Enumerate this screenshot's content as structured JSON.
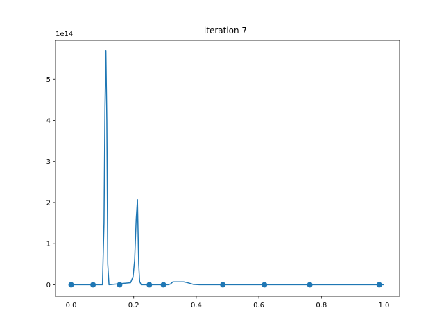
{
  "chart_data": {
    "type": "line",
    "title": "iteration 7",
    "xlabel": "",
    "ylabel": "",
    "y_offset_label": "1e14",
    "xlim": [
      -0.05,
      1.05
    ],
    "ylim": [
      -0.28,
      5.95
    ],
    "x_ticks": [
      0.0,
      0.2,
      0.4,
      0.6,
      0.8,
      1.0
    ],
    "x_tick_labels": [
      "0.0",
      "0.2",
      "0.4",
      "0.6",
      "0.8",
      "1.0"
    ],
    "y_ticks": [
      0,
      1,
      2,
      3,
      4,
      5
    ],
    "y_tick_labels": [
      "0",
      "1",
      "2",
      "3",
      "4",
      "5"
    ],
    "grid": false,
    "colors": {
      "line": "#1f77b4",
      "points": "#1f77b4"
    },
    "series": [
      {
        "kind": "line",
        "x": [
          0.0,
          0.1,
          0.105,
          0.108,
          0.111,
          0.114,
          0.117,
          0.121,
          0.19,
          0.198,
          0.203,
          0.208,
          0.212,
          0.216,
          0.219,
          0.224,
          0.23,
          0.31,
          0.318,
          0.325,
          0.36,
          0.372,
          0.39,
          0.41,
          1.0
        ],
        "y": [
          0.0,
          0.0,
          1.5,
          4.3,
          5.7,
          4.0,
          0.5,
          0.0,
          0.05,
          0.2,
          0.6,
          1.6,
          2.07,
          0.5,
          0.08,
          0.0,
          0.0,
          0.0,
          0.02,
          0.07,
          0.07,
          0.05,
          0.01,
          0.0,
          0.0
        ]
      },
      {
        "kind": "points",
        "x": [
          0.0,
          0.07,
          0.155,
          0.25,
          0.295,
          0.485,
          0.618,
          0.763,
          0.985
        ],
        "y": [
          0,
          0,
          0,
          0,
          0,
          0,
          0,
          0,
          0
        ]
      }
    ]
  }
}
